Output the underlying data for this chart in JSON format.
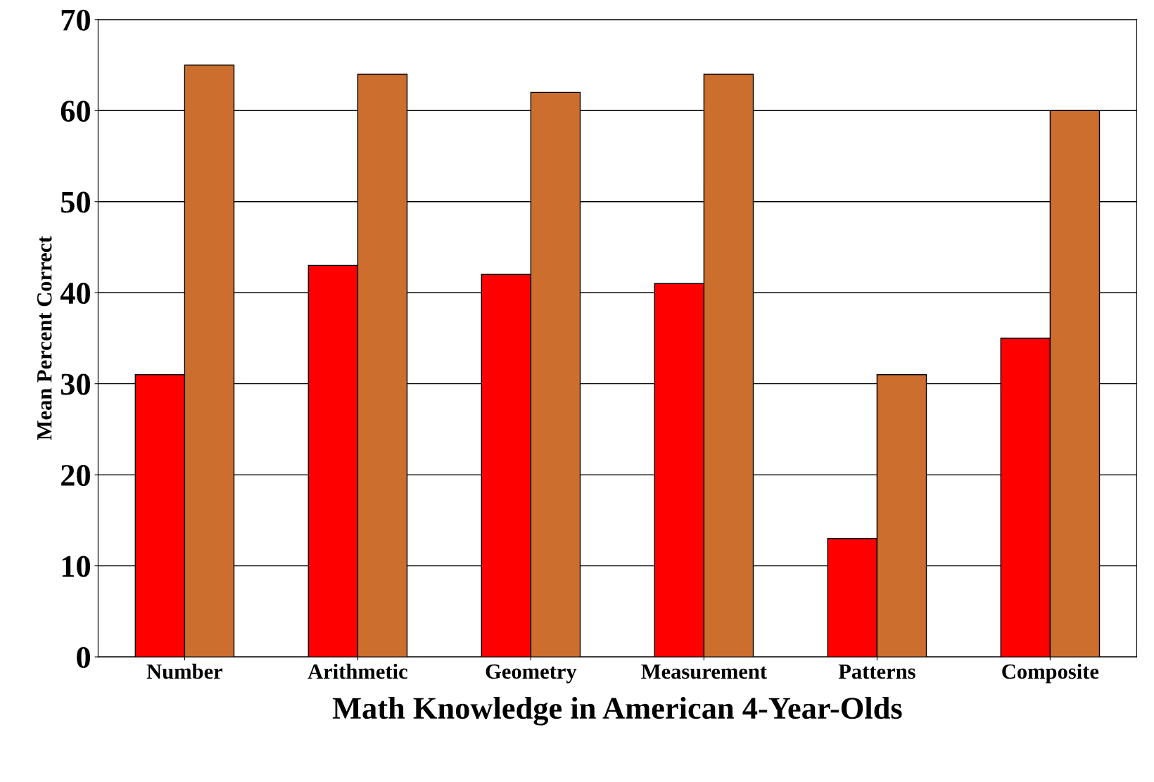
{
  "chart_data": {
    "type": "bar",
    "xlabel": "Math Knowledge in American 4-Year-Olds",
    "ylabel": "Mean Percent Correct",
    "categories": [
      "Number",
      "Arithmetic",
      "Geometry",
      "Measurement",
      "Patterns",
      "Composite"
    ],
    "series": [
      {
        "color": "#ff0000",
        "values": [
          31,
          43,
          42,
          41,
          13,
          35
        ]
      },
      {
        "color": "#cc6e2e",
        "values": [
          65,
          64,
          62,
          64,
          31,
          60
        ]
      }
    ],
    "ylim": [
      0,
      70
    ],
    "yticks": [
      0,
      10,
      20,
      30,
      40,
      50,
      60,
      70
    ],
    "grid": "y",
    "legend": false
  }
}
